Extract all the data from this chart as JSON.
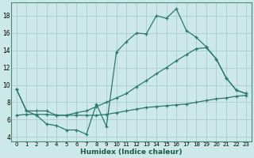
{
  "xlabel": "Humidex (Indice chaleur)",
  "bg_color": "#cce8e8",
  "grid_color": "#aacccc",
  "line_color": "#2a7a6a",
  "xlim": [
    -0.5,
    23.5
  ],
  "ylim": [
    3.5,
    19.5
  ],
  "xticks": [
    0,
    1,
    2,
    3,
    4,
    5,
    6,
    7,
    8,
    9,
    10,
    11,
    12,
    13,
    14,
    15,
    16,
    17,
    18,
    19,
    20,
    21,
    22,
    23
  ],
  "yticks": [
    4,
    6,
    8,
    10,
    12,
    14,
    16,
    18
  ],
  "line1_x": [
    0,
    1,
    2,
    3,
    4,
    5,
    6,
    7,
    8,
    9,
    10,
    11,
    12,
    13,
    14,
    15,
    16,
    17,
    18,
    19,
    20,
    21,
    22,
    23
  ],
  "line1_y": [
    9.5,
    7.0,
    6.5,
    5.5,
    5.3,
    4.8,
    4.8,
    4.3,
    7.8,
    5.2,
    13.8,
    15.0,
    16.0,
    15.9,
    18.0,
    17.7,
    18.8,
    16.3,
    15.5,
    14.4,
    13.0,
    10.8,
    9.4,
    9.0
  ],
  "line2_x": [
    0,
    1,
    2,
    3,
    4,
    5,
    6,
    7,
    8,
    9,
    10,
    11,
    12,
    13,
    14,
    15,
    16,
    17,
    18,
    19,
    20,
    21,
    22,
    23
  ],
  "line2_y": [
    9.5,
    7.0,
    7.0,
    7.0,
    6.5,
    6.5,
    6.8,
    7.0,
    7.5,
    8.0,
    8.5,
    9.0,
    9.8,
    10.5,
    11.3,
    12.0,
    12.8,
    13.5,
    14.2,
    14.3,
    13.0,
    10.8,
    9.4,
    9.0
  ],
  "line3_x": [
    0,
    1,
    2,
    3,
    4,
    5,
    6,
    7,
    8,
    9,
    10,
    11,
    12,
    13,
    14,
    15,
    16,
    17,
    18,
    19,
    20,
    21,
    22,
    23
  ],
  "line3_y": [
    6.5,
    6.6,
    6.6,
    6.6,
    6.5,
    6.5,
    6.5,
    6.5,
    6.5,
    6.6,
    6.8,
    7.0,
    7.2,
    7.4,
    7.5,
    7.6,
    7.7,
    7.8,
    8.0,
    8.2,
    8.4,
    8.5,
    8.7,
    8.8
  ]
}
